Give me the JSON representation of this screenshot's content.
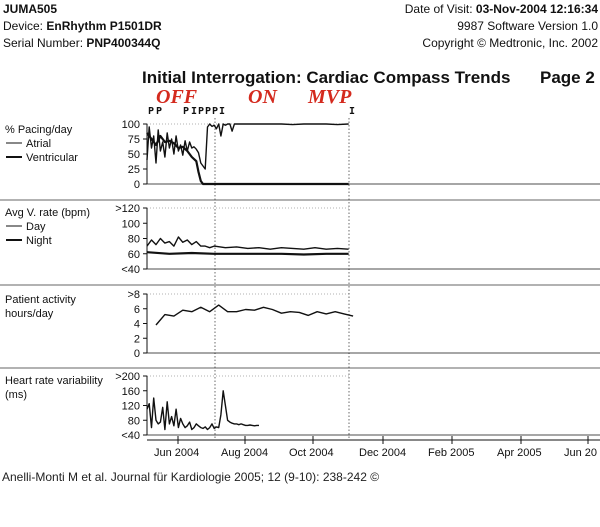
{
  "header": {
    "patient_id": "JUMA505",
    "device_label": "Device:",
    "device_value": "EnRhythm P1501DR",
    "serial_label": "Serial Number:",
    "serial_value": "PNP400344Q",
    "visit_label": "Date of Visit:",
    "visit_value": "03-Nov-2004 12:16:34",
    "software": "9987 Software Version 1.0",
    "copyright": "Copyright © Medtronic, Inc. 2002"
  },
  "report": {
    "title": "Initial Interrogation: Cardiac Compass Trends",
    "page": "Page 2"
  },
  "annotations": {
    "off": "OFF",
    "on": "ON",
    "mvp": "MVP",
    "accent_color": "#d42a1e",
    "event_marks": [
      "P",
      "P",
      "P",
      "I",
      "P",
      "P",
      "P",
      "I",
      "I"
    ]
  },
  "caption": "Anelli-Monti M et al. Journal für Kardiologie 2005; 12 (9-10): 238-242 ©",
  "chart_data": [
    {
      "type": "line",
      "title": "% Pacing/day",
      "legend": [
        "Atrial",
        "Ventricular"
      ],
      "yticks": [
        "100",
        "75",
        "50",
        "25",
        "0"
      ],
      "ylim": [
        0,
        100
      ],
      "series": [
        {
          "name": "Atrial",
          "x": [
            0,
            2,
            4,
            6,
            8,
            10,
            12,
            14,
            16,
            18,
            20,
            22,
            24,
            26,
            28,
            30,
            32,
            34,
            36,
            38,
            40,
            42,
            44,
            46,
            48,
            50,
            52,
            54,
            56,
            58,
            60,
            62,
            64,
            66,
            68,
            70,
            72,
            74,
            76,
            78,
            80,
            82,
            84,
            86,
            88,
            90,
            92,
            94,
            96,
            98,
            100,
            110,
            120,
            130,
            140,
            150,
            160,
            170,
            180
          ],
          "y": [
            40,
            95,
            60,
            80,
            35,
            90,
            55,
            70,
            45,
            85,
            60,
            75,
            50,
            80,
            55,
            65,
            48,
            72,
            55,
            70,
            60,
            62,
            58,
            52,
            35,
            30,
            25,
            95,
            100,
            96,
            98,
            92,
            100,
            80,
            100,
            98,
            100,
            100,
            88,
            100,
            100,
            100,
            100,
            100,
            100,
            100,
            100,
            100,
            100,
            100,
            100,
            100,
            100,
            99,
            100,
            100,
            100,
            99,
            100
          ]
        },
        {
          "name": "Ventricular",
          "x": [
            0,
            4,
            8,
            12,
            16,
            20,
            24,
            28,
            32,
            36,
            40,
            44,
            46,
            48,
            50,
            52,
            60,
            80,
            100,
            120,
            140,
            160,
            180
          ],
          "y": [
            85,
            75,
            65,
            80,
            70,
            72,
            68,
            60,
            62,
            55,
            45,
            38,
            20,
            5,
            0,
            0,
            0,
            0,
            0,
            0,
            0,
            0,
            0
          ]
        }
      ]
    },
    {
      "type": "line",
      "title": "Avg V. rate (bpm)",
      "legend": [
        "Day",
        "Night"
      ],
      "yticks": [
        ">120",
        "100",
        "80",
        "60",
        "<40"
      ],
      "ylim": [
        40,
        120
      ],
      "series": [
        {
          "name": "Day",
          "x": [
            0,
            4,
            8,
            12,
            16,
            20,
            24,
            28,
            32,
            36,
            40,
            44,
            48,
            52,
            56,
            60,
            70,
            80,
            90,
            100,
            110,
            120,
            130,
            140,
            150,
            160,
            170,
            180
          ],
          "y": [
            70,
            78,
            72,
            80,
            74,
            76,
            70,
            82,
            75,
            78,
            72,
            76,
            70,
            70,
            68,
            70,
            68,
            69,
            67,
            68,
            66,
            68,
            67,
            66,
            68,
            66,
            67,
            66
          ]
        },
        {
          "name": "Night",
          "x": [
            0,
            20,
            40,
            60,
            80,
            100,
            120,
            140,
            160,
            180
          ],
          "y": [
            62,
            60,
            61,
            60,
            60,
            60,
            60,
            59,
            60,
            60
          ]
        }
      ]
    },
    {
      "type": "line",
      "title": "Patient activity hours/day",
      "yticks": [
        ">8",
        "6",
        "4",
        "2",
        "0"
      ],
      "ylim": [
        0,
        8
      ],
      "series": [
        {
          "name": "",
          "x": [
            8,
            16,
            24,
            32,
            40,
            48,
            56,
            64,
            72,
            80,
            88,
            96,
            104,
            112,
            120,
            128,
            136,
            144,
            152,
            160,
            168,
            176,
            184
          ],
          "y": [
            3.8,
            5.2,
            5.0,
            5.8,
            5.6,
            6.2,
            5.6,
            6.5,
            5.6,
            5.6,
            5.9,
            5.8,
            6.2,
            5.9,
            5.4,
            5.6,
            5.5,
            5.1,
            5.6,
            5.3,
            5.6,
            5.3,
            5.0
          ]
        }
      ]
    },
    {
      "type": "line",
      "title": "Heart rate variability (ms)",
      "yticks": [
        ">200",
        "160",
        "120",
        "80",
        "<40"
      ],
      "ylim": [
        40,
        200
      ],
      "series": [
        {
          "name": "",
          "x": [
            0,
            2,
            4,
            6,
            8,
            10,
            12,
            14,
            16,
            18,
            20,
            22,
            24,
            26,
            28,
            30,
            32,
            34,
            36,
            38,
            40,
            42,
            44,
            46,
            48,
            50,
            52,
            54,
            56,
            58,
            60,
            62,
            64,
            66,
            68,
            70,
            72,
            74,
            76,
            78,
            80,
            82,
            84,
            86,
            88,
            90,
            92,
            94,
            96,
            98,
            100
          ],
          "y": [
            110,
            125,
            60,
            140,
            80,
            70,
            75,
            115,
            55,
            130,
            70,
            90,
            65,
            110,
            60,
            85,
            70,
            60,
            65,
            75,
            55,
            60,
            70,
            65,
            60,
            58,
            62,
            55,
            60,
            70,
            58,
            62,
            60,
            95,
            160,
            120,
            80,
            75,
            72,
            70,
            70,
            68,
            70,
            68,
            66,
            66,
            67,
            66,
            65,
            66,
            66
          ]
        }
      ]
    }
  ],
  "x_axis": {
    "labels": [
      "Jun 2004",
      "Aug 2004",
      "Oct 2004",
      "Dec 2004",
      "Feb 2005",
      "Apr 2005",
      "Jun 20"
    ]
  }
}
